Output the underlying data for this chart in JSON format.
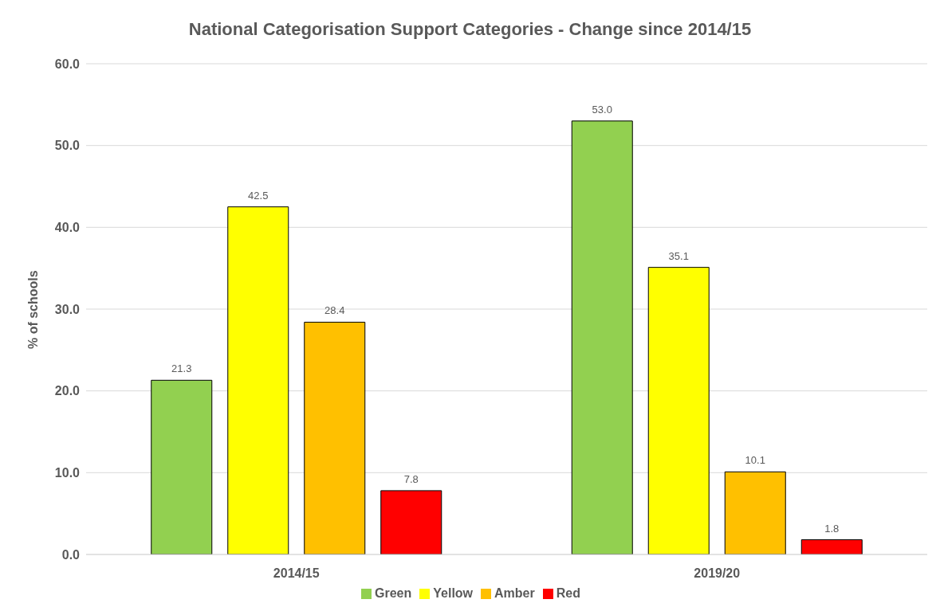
{
  "chart_data": {
    "type": "bar",
    "title": "National Categorisation Support Categories - Change since 2014/15",
    "ylabel": "% of schools",
    "categories": [
      "2014/15",
      "2019/20"
    ],
    "series": [
      {
        "name": "Green",
        "color": "#92d050",
        "values": [
          21.3,
          53.0
        ],
        "value_labels": [
          "21.3",
          "53.0"
        ]
      },
      {
        "name": "Yellow",
        "color": "#ffff00",
        "values": [
          42.5,
          35.1
        ],
        "value_labels": [
          "42.5",
          "35.1"
        ]
      },
      {
        "name": "Amber",
        "color": "#ffc000",
        "values": [
          28.4,
          10.1
        ],
        "value_labels": [
          "28.4",
          "10.1"
        ]
      },
      {
        "name": "Red",
        "color": "#ff0000",
        "values": [
          7.8,
          1.8
        ],
        "value_labels": [
          "7.8",
          "1.8"
        ]
      }
    ],
    "ylim": [
      0,
      60
    ],
    "yticks": [
      {
        "value": 0,
        "label": "0.0"
      },
      {
        "value": 10,
        "label": "10.0"
      },
      {
        "value": 20,
        "label": "20.0"
      },
      {
        "value": 30,
        "label": "30.0"
      },
      {
        "value": 40,
        "label": "40.0"
      },
      {
        "value": 50,
        "label": "50.0"
      },
      {
        "value": 60,
        "label": "60.0"
      }
    ],
    "grid": "y",
    "legend": "bottom"
  }
}
